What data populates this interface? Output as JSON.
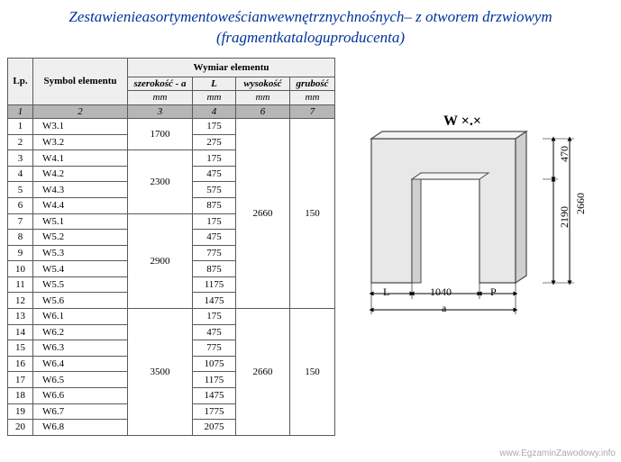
{
  "title": {
    "line1": "Zestawienieasortymentoweścianwewnętrznychnośnych– z otworem drzwiowym",
    "line2": "(fragmentkataloguproducenta)"
  },
  "table": {
    "head": {
      "lp": "Lp.",
      "symbol": "Symbol elementu",
      "wymiar": "Wymiar elementu",
      "szer": "szerokość - a",
      "L": "L",
      "wys": "wysokość",
      "grub": "grubość",
      "mm": "mm",
      "n1": "1",
      "n2": "2",
      "n3": "3",
      "n4": "4",
      "n6": "6",
      "n7": "7"
    },
    "groups": [
      {
        "szer": "1700",
        "wys": "2660",
        "grub": "150",
        "rows": [
          {
            "lp": "1",
            "sym": "W3.1",
            "L": "175"
          },
          {
            "lp": "2",
            "sym": "W3.2",
            "L": "275"
          }
        ]
      },
      {
        "szer": "2300",
        "rows": [
          {
            "lp": "3",
            "sym": "W4.1",
            "L": "175"
          },
          {
            "lp": "4",
            "sym": "W4.2",
            "L": "475"
          },
          {
            "lp": "5",
            "sym": "W4.3",
            "L": "575"
          },
          {
            "lp": "6",
            "sym": "W4.4",
            "L": "875"
          }
        ]
      },
      {
        "szer": "2900",
        "rows": [
          {
            "lp": "7",
            "sym": "W5.1",
            "L": "175"
          },
          {
            "lp": "8",
            "sym": "W5.2",
            "L": "475"
          },
          {
            "lp": "9",
            "sym": "W5.3",
            "L": "775"
          },
          {
            "lp": "10",
            "sym": "W5.4",
            "L": "875"
          },
          {
            "lp": "11",
            "sym": "W5.5",
            "L": "1175"
          },
          {
            "lp": "12",
            "sym": "W5.6",
            "L": "1475"
          }
        ]
      },
      {
        "szer": "3500",
        "wys": "2660",
        "grub": "150",
        "rows": [
          {
            "lp": "13",
            "sym": "W6.1",
            "L": "175"
          },
          {
            "lp": "14",
            "sym": "W6.2",
            "L": "475"
          },
          {
            "lp": "15",
            "sym": "W6.3",
            "L": "775"
          },
          {
            "lp": "16",
            "sym": "W6.4",
            "L": "1075"
          },
          {
            "lp": "17",
            "sym": "W6.5",
            "L": "1175"
          },
          {
            "lp": "18",
            "sym": "W6.6",
            "L": "1475"
          },
          {
            "lp": "19",
            "sym": "W6.7",
            "L": "1775"
          },
          {
            "lp": "20",
            "sym": "W6.8",
            "L": "2075"
          }
        ]
      }
    ]
  },
  "diagram": {
    "label": "W ×.×",
    "dims": {
      "top_right": "470",
      "right_full": "2660",
      "right_inner": "2190",
      "bottom_L": "L",
      "bottom_mid": "1040",
      "bottom_P": "P",
      "bottom_a": "a"
    },
    "colors": {
      "fill": "#e8e8e8",
      "stroke": "#4a4a4a",
      "text": "#000000"
    }
  },
  "watermark": "www.EgzaminZawodowy.info"
}
